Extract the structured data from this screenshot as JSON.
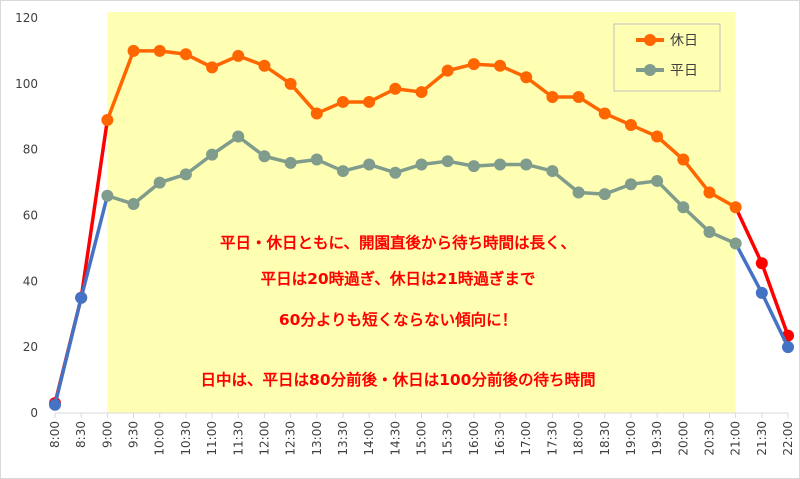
{
  "chart_data": {
    "type": "line",
    "categories": [
      "8:00",
      "8:30",
      "9:00",
      "9:30",
      "10:00",
      "10:30",
      "11:00",
      "11:30",
      "12:00",
      "12:30",
      "13:00",
      "13:30",
      "14:00",
      "14:30",
      "15:00",
      "15:30",
      "16:00",
      "16:30",
      "17:00",
      "17:30",
      "18:00",
      "18:30",
      "19:00",
      "19:30",
      "20:00",
      "20:30",
      "21:00",
      "21:30",
      "22:00"
    ],
    "ylim": [
      0,
      120
    ],
    "yticks": [
      0,
      20,
      40,
      60,
      80,
      100,
      120
    ],
    "grid": false,
    "legend_position": "top-right",
    "highlight": {
      "from": "9:00",
      "to": "21:00",
      "color": "#ffffb3"
    },
    "series": [
      {
        "name": "休日",
        "color": "#ff6600",
        "edge_color": "#ff0000",
        "values": [
          3,
          35,
          89,
          110,
          110,
          109,
          105,
          108.5,
          105.5,
          100,
          91,
          94.5,
          94.5,
          98.5,
          97.5,
          104,
          106,
          105.5,
          102,
          96,
          96,
          91,
          87.5,
          84,
          77,
          67,
          62.5,
          45.5,
          23.5
        ]
      },
      {
        "name": "平日",
        "color": "#7f9c8c",
        "edge_color": "#4472c4",
        "values": [
          2.5,
          35,
          66,
          63.5,
          70,
          72.5,
          78.5,
          84,
          78,
          76,
          77,
          73.5,
          75.5,
          73,
          75.5,
          76.5,
          75,
          75.5,
          75.5,
          73.5,
          67,
          66.5,
          69.5,
          70.5,
          62.5,
          55,
          51.5,
          36.5,
          20
        ]
      }
    ],
    "annotations": [
      "平日・休日ともに、開園直後から待ち時間は長く、",
      "平日は20時過ぎ、休日は21時過ぎまで",
      "60分よりも短くならない傾向に！",
      "日中は、平日は80分前後・休日は100分前後の待ち時間"
    ]
  }
}
